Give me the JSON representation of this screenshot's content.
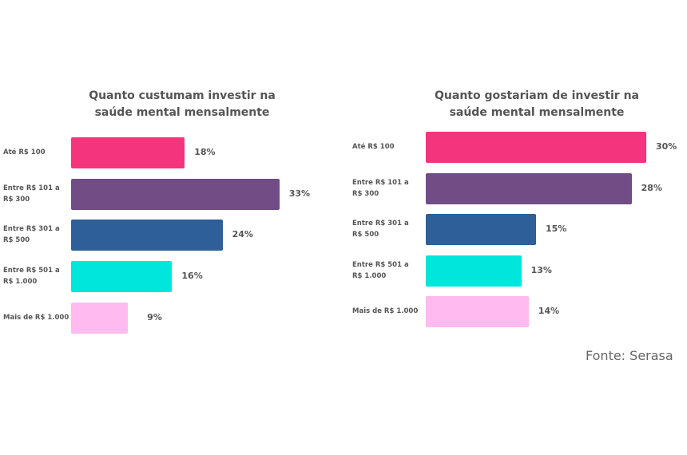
{
  "chart_data": [
    {
      "type": "bar",
      "orientation": "horizontal",
      "title": "Quanto custumam investir na saúde mental mensalmente",
      "title_lines": [
        "Quanto custumam investir na",
        "saúde mental mensalmente"
      ],
      "categories": [
        "Até R$ 100",
        "Entre R$ 101 a R$ 300",
        "Entre R$ 301 a R$ 500",
        "Entre R$ 501 a R$ 1.000",
        "Mais de R$ 1.000"
      ],
      "values": [
        18,
        33,
        24,
        16,
        9
      ],
      "value_labels": [
        "18%",
        "33%",
        "24%",
        "16%",
        "9%"
      ],
      "colors": [
        "#f4347d",
        "#714c85",
        "#2e5f98",
        "#00e6dc",
        "#ffbaf0"
      ],
      "grid": false
    },
    {
      "type": "bar",
      "orientation": "horizontal",
      "title": "Quanto gostariam de investir na saúde mental mensalmente",
      "title_lines": [
        "Quanto gostariam de investir na",
        "saúde mental mensalmente"
      ],
      "categories": [
        "Até R$ 100",
        "Entre R$ 101 a R$ 300",
        "Entre R$ 301 a R$ 500",
        "Entre R$ 501 a R$ 1.000",
        "Mais de R$ 1.000"
      ],
      "values": [
        30,
        28,
        15,
        13,
        14
      ],
      "value_labels": [
        "30%",
        "28%",
        "15%",
        "13%",
        "14%"
      ],
      "colors": [
        "#f4347d",
        "#714c85",
        "#2e5f98",
        "#00e6dc",
        "#ffbaf0"
      ],
      "grid": false
    }
  ],
  "source": "Fonte: Serasa"
}
